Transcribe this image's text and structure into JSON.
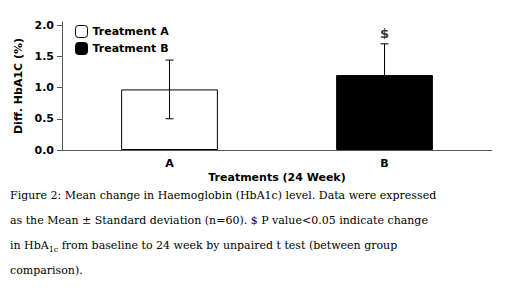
{
  "chart_data": {
    "type": "bar",
    "categories": [
      "A",
      "B"
    ],
    "series": [
      {
        "name": "Treatment A",
        "color": "white",
        "values": [
          0.97,
          null
        ],
        "errors": [
          0.47,
          null
        ]
      },
      {
        "name": "Treatment B",
        "color": "black",
        "values": [
          null,
          1.2
        ],
        "errors": [
          null,
          0.5
        ]
      }
    ],
    "xlabel": "Treatments (24 Week)",
    "ylabel": "Diff. HbA1C (%)",
    "ylim": [
      0.0,
      2.05
    ],
    "yticks": [
      {
        "value": 0.0,
        "label": "0.0"
      },
      {
        "value": 0.5,
        "label": "0.5"
      },
      {
        "value": 1.0,
        "label": "1.0"
      },
      {
        "value": 1.5,
        "label": "1.5"
      },
      {
        "value": 2.0,
        "label": "2.0"
      }
    ],
    "grid": false,
    "legend": "upper left",
    "annotations": [
      {
        "text": "$",
        "x": "B",
        "y": 1.74
      }
    ],
    "caption": [
      "Figure 2: Mean change in Haemoglobin (HbA1c) level. Data were expressed",
      "as the Mean ± Standard deviation (n=60). $ P value<0.05 indicate change",
      [
        {
          "text": "in HbA"
        },
        {
          "text": "1c",
          "subscript": true
        },
        {
          "text": " from baseline to 24 week by unpaired t test (between group"
        }
      ],
      "comparison)."
    ]
  }
}
